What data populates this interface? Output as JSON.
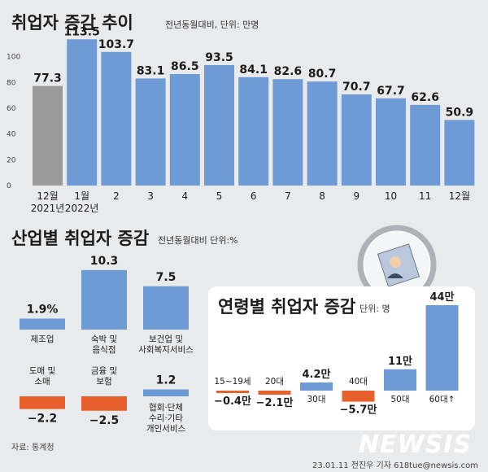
{
  "colors": {
    "bar_blue": "#6e9ad6",
    "bar_gray": "#9a9a9a",
    "bar_orange": "#e8602c",
    "panel_bg": "#ffffff",
    "page_bg": "#e9eaec"
  },
  "chart_data": [
    {
      "type": "bar",
      "title": "취업자 증감 추이",
      "subtitle": "전년동월대비, 단위: 만명",
      "ylim": [
        0,
        120
      ],
      "yticks": [
        "0",
        "20",
        "40",
        "60",
        "80",
        "100"
      ],
      "categories": [
        {
          "line1": "12월",
          "line2": "2021년"
        },
        {
          "line1": "1월",
          "line2": "2022년"
        },
        {
          "line1": "2",
          "line2": ""
        },
        {
          "line1": "3",
          "line2": ""
        },
        {
          "line1": "4",
          "line2": ""
        },
        {
          "line1": "5",
          "line2": ""
        },
        {
          "line1": "6",
          "line2": ""
        },
        {
          "line1": "7",
          "line2": ""
        },
        {
          "line1": "8",
          "line2": ""
        },
        {
          "line1": "9",
          "line2": ""
        },
        {
          "line1": "10",
          "line2": ""
        },
        {
          "line1": "11",
          "line2": ""
        },
        {
          "line1": "12월",
          "line2": ""
        }
      ],
      "values": [
        77.3,
        113.5,
        103.7,
        83.1,
        86.5,
        93.5,
        84.1,
        82.6,
        80.7,
        70.7,
        67.7,
        62.6,
        50.9
      ],
      "value_labels": [
        "77.3",
        "113.5",
        "103.7",
        "83.1",
        "86.5",
        "93.5",
        "84.1",
        "82.6",
        "80.7",
        "70.7",
        "67.7",
        "62.6",
        "50.9"
      ]
    },
    {
      "type": "bar",
      "title": "산업별 취업자 증감",
      "subtitle": "전년동월대비 단위:%",
      "categories": [
        {
          "lines": [
            "제조업"
          ]
        },
        {
          "lines": [
            "숙박 및",
            "음식점"
          ]
        },
        {
          "lines": [
            "보건업 및",
            "사회복지서비스"
          ]
        },
        {
          "lines": [
            "도매 및",
            "소매"
          ]
        },
        {
          "lines": [
            "금융 및",
            "보험"
          ]
        },
        {
          "lines": [
            "협회·단체",
            "수리·기타",
            "개인서비스"
          ]
        }
      ],
      "values": [
        1.9,
        10.3,
        7.5,
        -2.2,
        -2.5,
        1.2
      ],
      "value_labels": [
        "1.9%",
        "10.3",
        "7.5",
        "−2.2",
        "−2.5",
        "1.2"
      ]
    },
    {
      "type": "bar",
      "title": "연령별 취업자 증감",
      "subtitle": "단위: 명",
      "categories": [
        "15~19세",
        "20대",
        "30대",
        "40대",
        "50대",
        "60대↑"
      ],
      "values": [
        -4000,
        -21000,
        42000,
        -57000,
        110000,
        440000
      ],
      "value_labels": [
        "−0.4만",
        "−2.1만",
        "4.2만",
        "−5.7만",
        "11만",
        "44만"
      ]
    }
  ],
  "footer": {
    "source": "자료: 통계청",
    "credit": "23.01.11 전진우 기자 618tue@newsis.com",
    "logo": "NEWSIS"
  }
}
